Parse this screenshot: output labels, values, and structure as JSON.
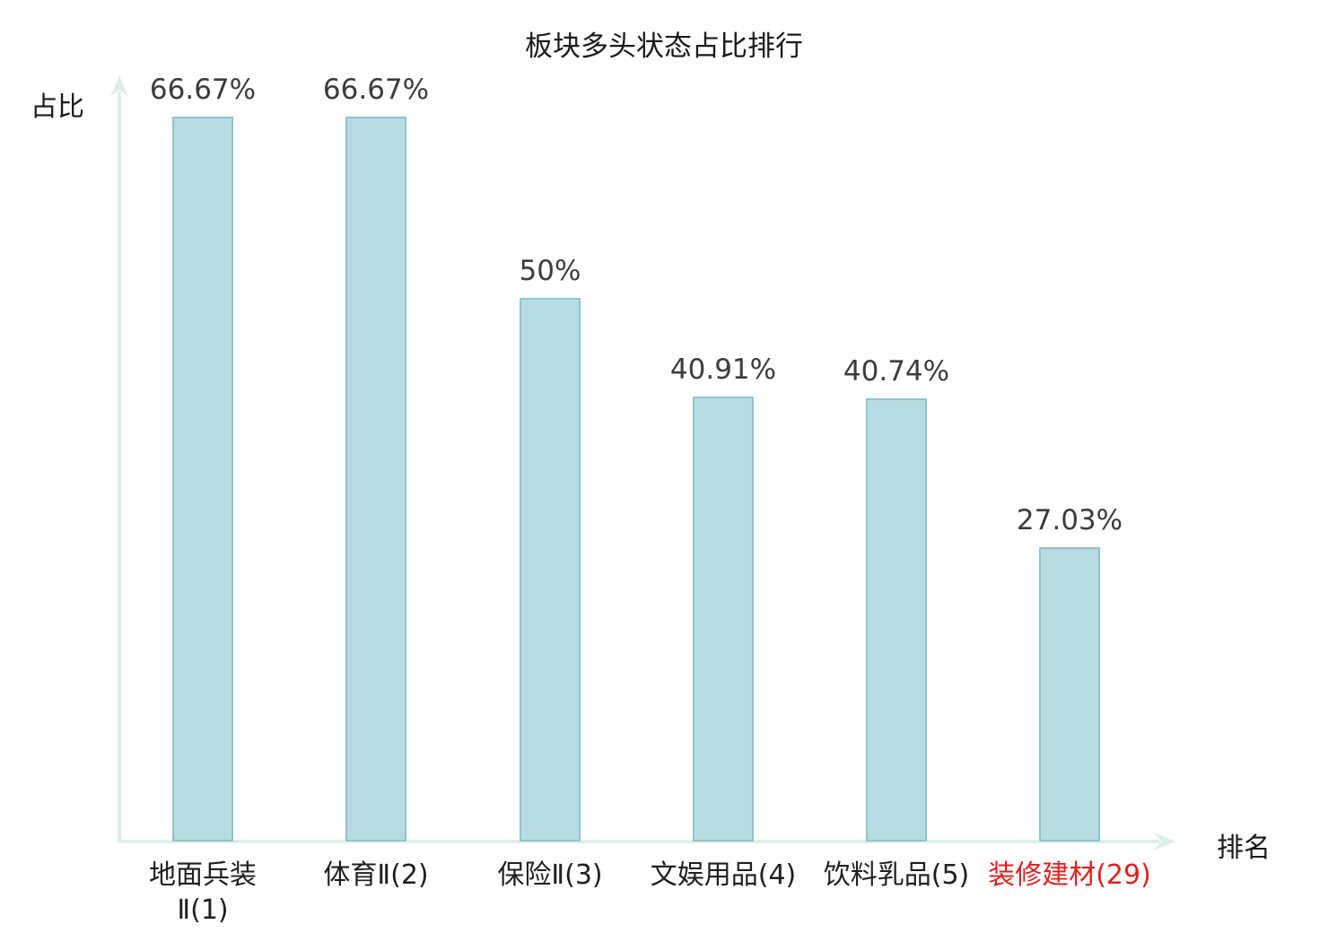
{
  "chart_data": {
    "type": "bar",
    "title": "板块多头状态占比排行",
    "ylabel": "占比",
    "xlabel": "排名",
    "categories": [
      "地面兵装\nⅡ(1)",
      "体育Ⅱ(2)",
      "保险Ⅱ(3)",
      "文娱用品(4)",
      "饮料乳品(5)",
      "装修建材(29)"
    ],
    "values": [
      66.67,
      66.67,
      50,
      40.91,
      40.74,
      27.03
    ],
    "labels": [
      "66.67%",
      "66.67%",
      "50%",
      "40.91%",
      "40.74%",
      "27.03%"
    ],
    "ylim": [
      0,
      70
    ],
    "grid": false,
    "legend": "none",
    "highlight_index": 5,
    "highlight_color": "#e01f1f",
    "bar_color": "#b6dce1",
    "bar_border_color": "#8fc5cb",
    "axis_color": "#ddefe9",
    "value_label_color": "#3c3c3c",
    "category_label_color": "#1f1f1f"
  }
}
